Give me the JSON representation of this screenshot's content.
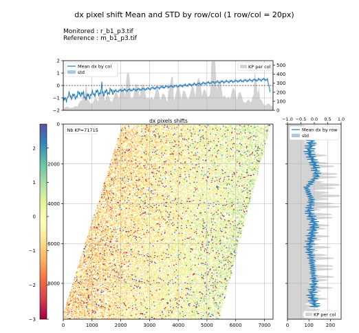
{
  "figure": {
    "title": "dx pixel shift Mean and STD by row/col (1 row/col = 20px)",
    "monitored": "Monitored : r_b1_p3.tif",
    "reference": "Reference : m_b1_p3.tif"
  },
  "chart_data": [
    {
      "id": "top",
      "type": "line",
      "title": "",
      "legend_left": [
        "Mean dx by col",
        "std"
      ],
      "legend_right": [
        "KP per col"
      ],
      "legend_placement": "top-left / top-right",
      "xlim": [
        0,
        7300
      ],
      "ylim": [
        -2,
        2
      ],
      "yticks": [
        "−2",
        "−1",
        "0",
        "1",
        "2"
      ],
      "y2lim": [
        0,
        550
      ],
      "y2ticks": [
        "0",
        "100",
        "200",
        "300",
        "400",
        "500"
      ],
      "grid": true,
      "series": [
        {
          "name": "Mean dx by col",
          "x": [
            0,
            200,
            400,
            600,
            800,
            1000,
            1200,
            1400,
            1600,
            1800,
            2000,
            2400,
            2800,
            3200,
            3600,
            4000,
            4400,
            4800,
            5200,
            5600,
            6000,
            6400,
            6800,
            7100,
            7200
          ],
          "y": [
            -1.3,
            -0.8,
            -0.9,
            -0.6,
            -0.95,
            -0.7,
            -0.55,
            -0.6,
            -0.5,
            -0.45,
            -0.4,
            -0.35,
            -0.3,
            -0.2,
            -0.1,
            -0.05,
            0.05,
            0.15,
            0.25,
            0.3,
            0.35,
            0.4,
            0.45,
            0.5,
            -0.5
          ]
        },
        {
          "name": "KP per col",
          "x": [
            0,
            500,
            1000,
            1500,
            2000,
            2500,
            3000,
            3500,
            4000,
            4500,
            5000,
            5500,
            6000,
            6500,
            7000,
            7200
          ],
          "y": [
            20,
            60,
            130,
            160,
            180,
            230,
            200,
            150,
            180,
            240,
            260,
            240,
            170,
            130,
            100,
            60
          ]
        }
      ]
    },
    {
      "id": "map",
      "type": "heatmap",
      "title": "dx pixels shifts",
      "annotation": "Nb KP=71715",
      "xlim": [
        0,
        7300
      ],
      "ylim": [
        0,
        9800
      ],
      "xticks": [
        "0",
        "1000",
        "2000",
        "3000",
        "4000",
        "5000",
        "6000",
        "7000"
      ],
      "yticks": [
        "0",
        "2000",
        "4000",
        "6000",
        "8000"
      ],
      "grid": true,
      "colorbar": {
        "range": [
          -3,
          2.7
        ],
        "ticks": [
          "−3",
          "−2",
          "−1",
          "0",
          "1",
          "2"
        ],
        "colors": [
          "#9e0142",
          "#d53e4f",
          "#f46d43",
          "#fdae61",
          "#fee08b",
          "#ffffbf",
          "#e6f598",
          "#abdda4",
          "#66c2a5",
          "#3288bd",
          "#5e4fa2"
        ]
      }
    },
    {
      "id": "right",
      "type": "line",
      "title": "",
      "legend": [
        "Mean dx by row",
        "std"
      ],
      "legend2": [
        "KP per col"
      ],
      "legend_placement": "top-right / bottom-right",
      "xlim_top": [
        -1,
        1
      ],
      "xticks_top": [
        "−1.0",
        "−0.5",
        "0.0",
        "0.5",
        "1.0"
      ],
      "xlim_bottom": [
        0,
        250
      ],
      "xticks_bottom": [
        "0",
        "100",
        "200"
      ],
      "grid": true,
      "series": [
        {
          "name": "Mean dx by row",
          "y": [
            200,
            800,
            1400,
            2000,
            2600,
            3200,
            3800,
            4400,
            5000,
            5600,
            6200,
            6800,
            7400,
            8000,
            8600,
            9200
          ],
          "x": [
            0.0,
            -0.1,
            -0.2,
            0.0,
            0.1,
            -0.3,
            -0.1,
            -0.2,
            0.0,
            -0.1,
            -0.2,
            -0.1,
            -0.05,
            0.0,
            -0.1,
            0.05
          ]
        },
        {
          "name": "KP per col",
          "y": [
            0,
            1000,
            2000,
            3000,
            4000,
            5000,
            6000,
            7000,
            8000,
            9000,
            9800
          ],
          "x": [
            60,
            100,
            160,
            200,
            190,
            150,
            140,
            170,
            160,
            130,
            90
          ]
        }
      ]
    }
  ]
}
